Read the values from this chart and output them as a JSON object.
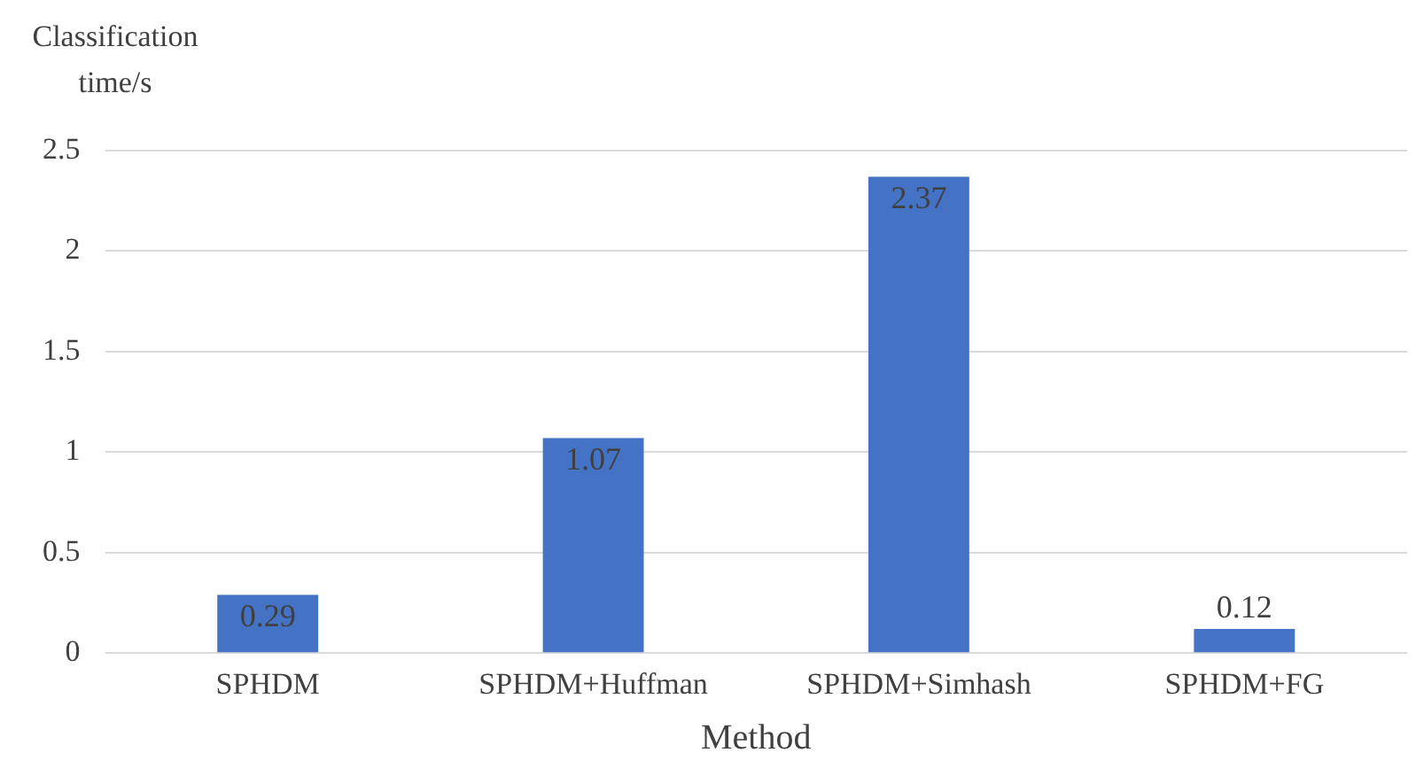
{
  "chart_data": {
    "type": "bar",
    "ylabel": "Classification time/s",
    "xlabel": "Method",
    "categories": [
      "SPHDM",
      "SPHDM+Huffman",
      "SPHDM+Simhash",
      "SPHDM+FG"
    ],
    "values": [
      0.29,
      1.07,
      2.37,
      0.12
    ],
    "color": "#4472c4",
    "ylim": [
      0,
      2.5
    ],
    "yticks": [
      0,
      0.5,
      1,
      1.5,
      2,
      2.5
    ],
    "grid": "y",
    "data_labels": true,
    "legend": false
  }
}
